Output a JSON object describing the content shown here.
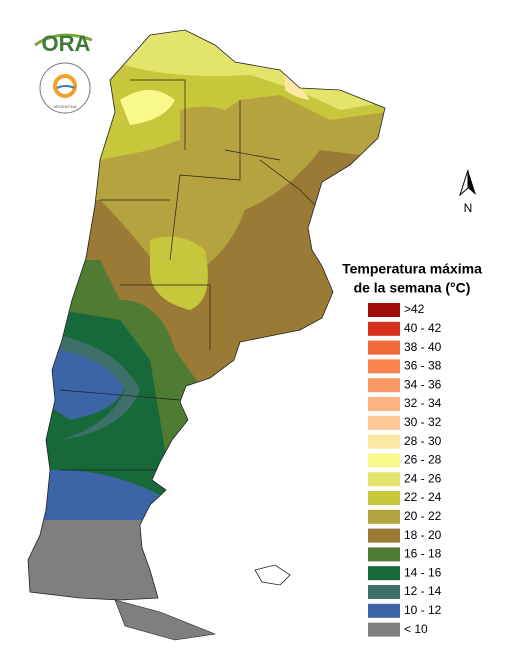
{
  "logo": {
    "text": "ORA",
    "seal_text": "ARGENTINA"
  },
  "compass": {
    "label": "N"
  },
  "legend": {
    "title": [
      "Temperatura máxima",
      "de la semana (°C)"
    ],
    "items": [
      {
        "label": ">42",
        "color": "#a00d0d"
      },
      {
        "label": "40 - 42",
        "color": "#d7301f"
      },
      {
        "label": "38 - 40",
        "color": "#f26a3b"
      },
      {
        "label": "36 - 38",
        "color": "#f7844f"
      },
      {
        "label": "34 - 36",
        "color": "#fa9966"
      },
      {
        "label": "32 - 34",
        "color": "#fcb27e"
      },
      {
        "label": "30 - 32",
        "color": "#fdc796"
      },
      {
        "label": "28 - 30",
        "color": "#fee7a4"
      },
      {
        "label": "26 - 28",
        "color": "#f8f88c"
      },
      {
        "label": "24 - 26",
        "color": "#e2e46c"
      },
      {
        "label": "22 - 24",
        "color": "#c7c73b"
      },
      {
        "label": "20 - 22",
        "color": "#b4a33e"
      },
      {
        "label": "18 - 20",
        "color": "#9b7a36"
      },
      {
        "label": "16 - 18",
        "color": "#4f7b33"
      },
      {
        "label": "14 - 16",
        "color": "#17693a"
      },
      {
        "label": "12 - 14",
        "color": "#3e6f69"
      },
      {
        "label": "10 - 12",
        "color": "#3b65a6"
      },
      {
        "label": "< 10",
        "color": "#7f7f7f"
      }
    ]
  }
}
